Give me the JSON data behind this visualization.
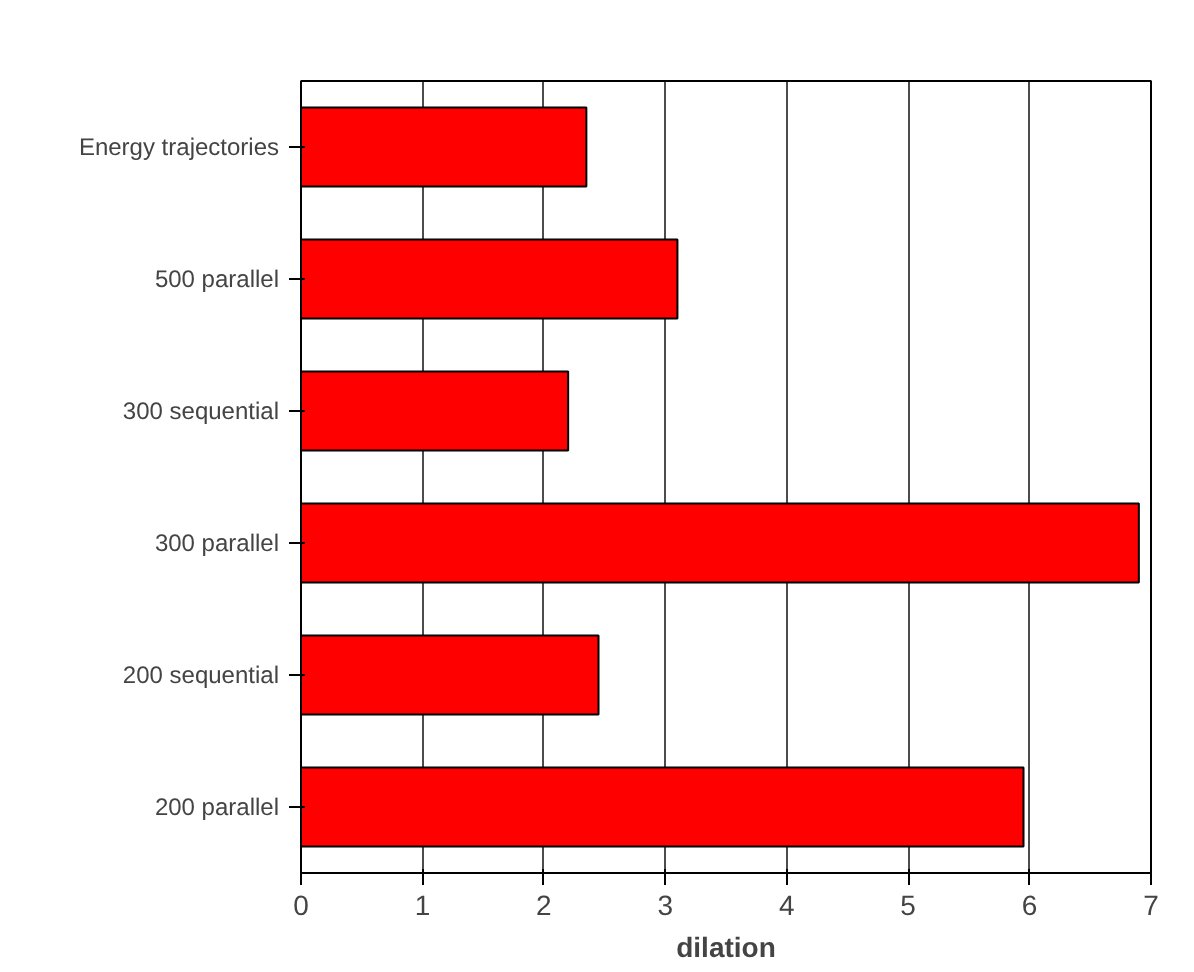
{
  "chart_data": {
    "type": "bar",
    "orientation": "horizontal",
    "xlabel": "dilation",
    "categories": [
      "Energy trajectories",
      "500 parallel",
      "300 sequential",
      "300 parallel",
      "200 sequential",
      "200 parallel"
    ],
    "values": [
      2.35,
      3.1,
      2.2,
      6.9,
      2.45,
      5.95
    ],
    "color": "#ff0000",
    "xlim": [
      0,
      7
    ],
    "xticks": [
      0,
      1,
      2,
      3,
      4,
      5,
      6,
      7
    ],
    "grid": "x"
  }
}
